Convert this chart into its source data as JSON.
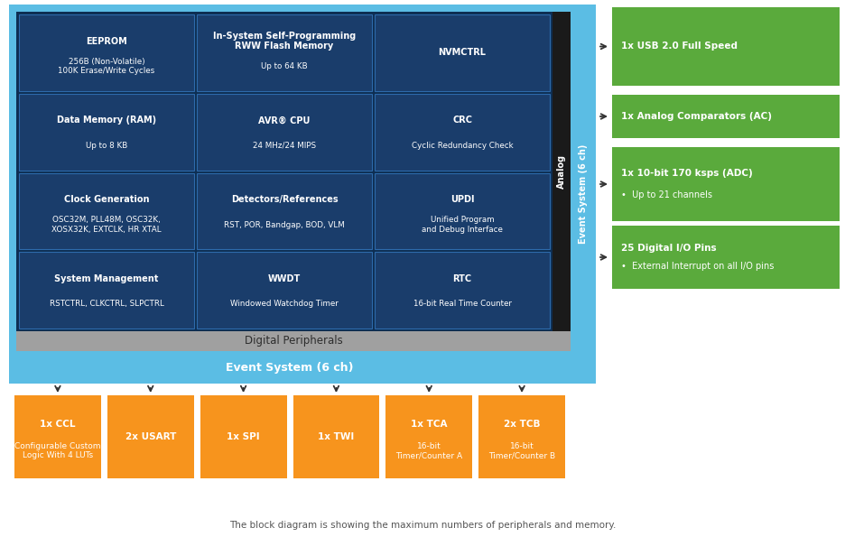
{
  "bg_color": "#ffffff",
  "outer_border_color": "#5bbde4",
  "analog_strip_color": "#1e1e1e",
  "digital_peripherals_color": "#9e9e9e",
  "blue_cell_color": "#1a3d6b",
  "orange_color": "#f7941d",
  "green_color": "#5aaa3c",
  "title": "The block diagram is showing the maximum numbers of peripherals and memory.",
  "cells": [
    {
      "row": 0,
      "col": 0,
      "title": "EEPROM",
      "body": "256B (Non-Volatile)\n100K Erase/Write Cycles"
    },
    {
      "row": 0,
      "col": 1,
      "title": "In-System Self-Programming\nRWW Flash Memory",
      "body": "Up to 64 KB"
    },
    {
      "row": 0,
      "col": 2,
      "title": "NVMCTRL",
      "body": ""
    },
    {
      "row": 1,
      "col": 0,
      "title": "Data Memory (RAM)",
      "body": "Up to 8 KB"
    },
    {
      "row": 1,
      "col": 1,
      "title": "AVR® CPU",
      "body": "24 MHz/24 MIPS"
    },
    {
      "row": 1,
      "col": 2,
      "title": "CRC",
      "body": "Cyclic Redundancy Check"
    },
    {
      "row": 2,
      "col": 0,
      "title": "Clock Generation",
      "body": "OSC32M, PLL48M, OSC32K,\nXOSX32K, EXTCLK, HR XTAL"
    },
    {
      "row": 2,
      "col": 1,
      "title": "Detectors/References",
      "body": "RST, POR, Bandgap, BOD, VLM"
    },
    {
      "row": 2,
      "col": 2,
      "title": "UPDI",
      "body": "Unified Program\nand Debug Interface"
    },
    {
      "row": 3,
      "col": 0,
      "title": "System Management",
      "body": "RSTCTRL, CLKCTRL, SLPCTRL"
    },
    {
      "row": 3,
      "col": 1,
      "title": "WWDT",
      "body": "Windowed Watchdog Timer"
    },
    {
      "row": 3,
      "col": 2,
      "title": "RTC",
      "body": "16-bit Real Time Counter"
    }
  ],
  "bottom_boxes": [
    {
      "title": "1x CCL",
      "body": "Configurable Custom\nLogic With 4 LUTs"
    },
    {
      "title": "2x USART",
      "body": ""
    },
    {
      "title": "1x SPI",
      "body": ""
    },
    {
      "title": "1x TWI",
      "body": ""
    },
    {
      "title": "1x TCA",
      "body": "16-bit\nTimer/Counter A"
    },
    {
      "title": "2x TCB",
      "body": "16-bit\nTimer/Counter B"
    }
  ],
  "right_boxes": [
    {
      "title": "1x USB 2.0 Full Speed",
      "body": ""
    },
    {
      "title": "1x Analog Comparators (AC)",
      "body": ""
    },
    {
      "title": "1x 10-bit 170 ksps (ADC)",
      "body": "•  Up to 21 channels"
    },
    {
      "title": "25 Digital I/O Pins",
      "body": "•  External Interrupt on all I/O pins"
    }
  ]
}
